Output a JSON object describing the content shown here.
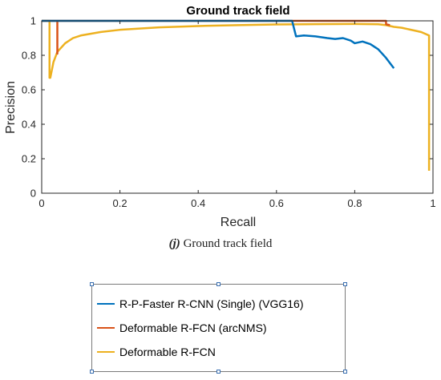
{
  "chart_data": {
    "type": "line",
    "title": "Ground track field",
    "xlabel": "Recall",
    "ylabel": "Precision",
    "xlim": [
      0,
      1
    ],
    "ylim": [
      0,
      1
    ],
    "xticks": [
      "0",
      "0.2",
      "0.4",
      "0.6",
      "0.8",
      "1"
    ],
    "yticks": [
      "0",
      "0.2",
      "0.4",
      "0.6",
      "0.8",
      "1"
    ],
    "grid": false,
    "series": [
      {
        "name": "R-P-Faster R-CNN (Single) (VGG16)",
        "color": "#0072BD",
        "x": [
          0.0,
          0.3,
          0.6,
          0.64,
          0.65,
          0.67,
          0.7,
          0.73,
          0.75,
          0.77,
          0.79,
          0.8,
          0.82,
          0.84,
          0.86,
          0.88,
          0.9
        ],
        "y": [
          1.0,
          1.0,
          1.0,
          1.0,
          0.91,
          0.915,
          0.91,
          0.9,
          0.895,
          0.9,
          0.885,
          0.87,
          0.88,
          0.865,
          0.835,
          0.785,
          0.725
        ]
      },
      {
        "name": "Deformable R-FCN (arcNMS)",
        "color": "#D95319",
        "x": [
          0.0,
          0.04,
          0.04,
          0.04,
          0.3,
          0.6,
          0.8,
          0.88,
          0.88,
          0.89
        ],
        "y": [
          1.0,
          1.0,
          0.81,
          1.0,
          1.0,
          1.0,
          1.0,
          1.0,
          0.98,
          0.975
        ]
      },
      {
        "name": "Deformable R-FCN",
        "color": "#EDB120",
        "x": [
          0.0,
          0.02,
          0.02,
          0.022,
          0.03,
          0.04,
          0.06,
          0.08,
          0.1,
          0.15,
          0.2,
          0.3,
          0.4,
          0.5,
          0.6,
          0.7,
          0.8,
          0.86,
          0.88,
          0.9,
          0.92,
          0.94,
          0.96,
          0.97,
          0.98,
          0.99,
          0.99
        ],
        "y": [
          1.0,
          1.0,
          0.67,
          0.67,
          0.76,
          0.82,
          0.87,
          0.9,
          0.915,
          0.935,
          0.948,
          0.962,
          0.97,
          0.975,
          0.979,
          0.981,
          0.982,
          0.98,
          0.975,
          0.965,
          0.96,
          0.95,
          0.94,
          0.935,
          0.925,
          0.915,
          0.13
        ]
      }
    ]
  },
  "caption": {
    "letter": "(j)",
    "text": "Ground track field"
  },
  "legend": {
    "entries": [
      {
        "label": "R-P-Faster R-CNN (Single) (VGG16)",
        "color": "#0072BD"
      },
      {
        "label": "Deformable R-FCN (arcNMS)",
        "color": "#D95319"
      },
      {
        "label": "Deformable R-FCN",
        "color": "#EDB120"
      }
    ]
  }
}
